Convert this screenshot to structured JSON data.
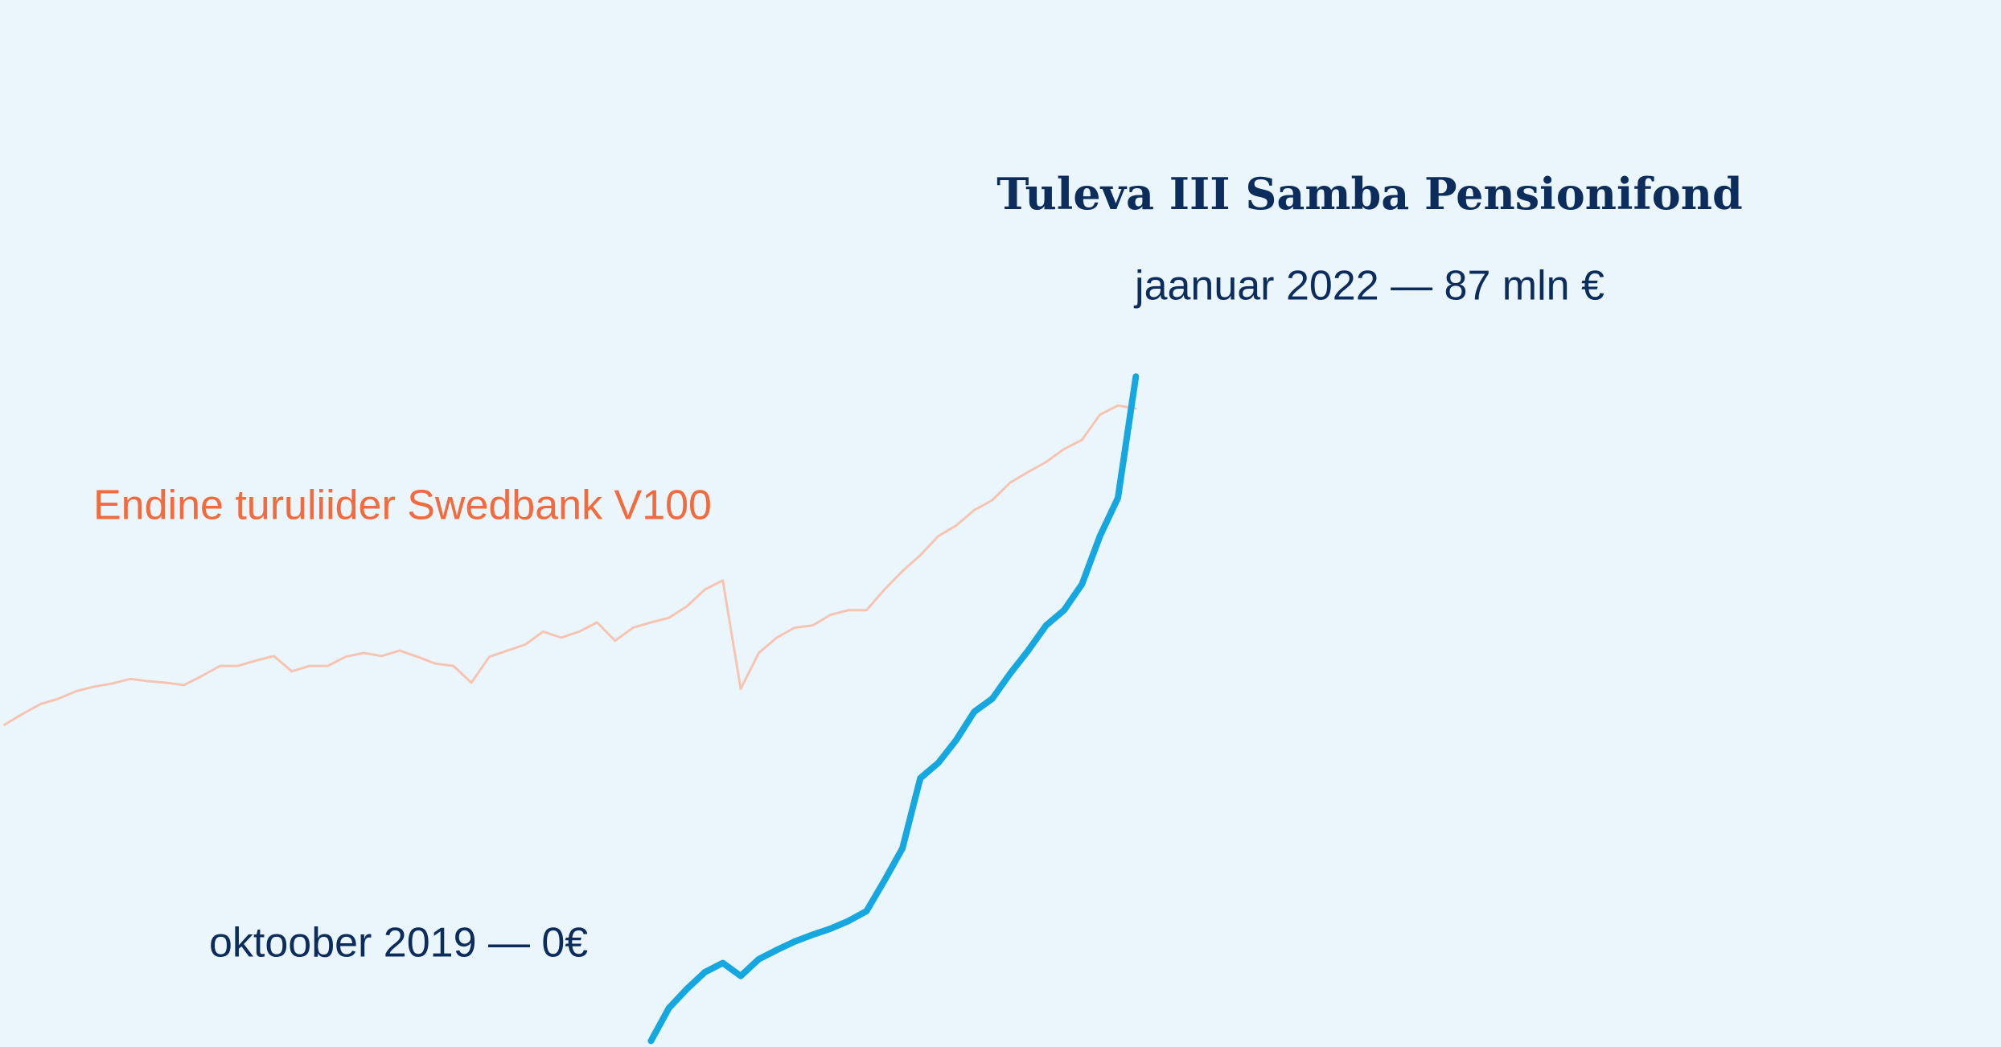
{
  "chart_data": {
    "type": "line",
    "title": "Tuleva III Samba Pensionifond",
    "subtitle": "jaanuar 2022 — 87 mln €",
    "annotations": [
      "oktoober 2019 — 0€"
    ],
    "categories": [
      null,
      null,
      null,
      null,
      null,
      null,
      null,
      null,
      null,
      null,
      null,
      null,
      null,
      null,
      null,
      null,
      null,
      null,
      null,
      null,
      null,
      null,
      null,
      null,
      null,
      null,
      null,
      null,
      null,
      null,
      null,
      null,
      null,
      null,
      null,
      null,
      null,
      null,
      null,
      null,
      null,
      null,
      null,
      null,
      null,
      null,
      null,
      null,
      null,
      null,
      null,
      null,
      null,
      null,
      null,
      null,
      null,
      null,
      null,
      null,
      null,
      null,
      null,
      null
    ],
    "ylim": [
      -0.8,
      136.3
    ],
    "series": [
      {
        "name": "Endine turuliider Swedbank V100",
        "color": "#f5c4b3",
        "values": [
          41.4,
          42.8,
          44.1,
          44.8,
          45.8,
          46.4,
          46.8,
          47.4,
          47.1,
          46.9,
          46.6,
          47.8,
          49.1,
          49.1,
          49.8,
          50.4,
          48.4,
          49.1,
          49.1,
          50.3,
          50.8,
          50.4,
          51.1,
          50.3,
          49.4,
          49.1,
          46.9,
          50.3,
          51.1,
          51.9,
          53.6,
          52.8,
          53.6,
          54.8,
          52.4,
          54.1,
          54.8,
          55.4,
          56.9,
          59.1,
          60.3,
          46.1,
          50.8,
          52.8,
          54.1,
          54.4,
          55.8,
          56.4,
          56.4,
          59.1,
          61.5,
          63.6,
          66.1,
          67.5,
          69.5,
          70.8,
          73.1,
          74.5,
          75.8,
          77.5,
          78.7,
          82.0,
          83.2,
          82.8
        ]
      },
      {
        "color": "#15a8e0",
        "values": [
          null,
          null,
          null,
          null,
          null,
          null,
          null,
          null,
          null,
          null,
          null,
          null,
          null,
          null,
          null,
          null,
          null,
          null,
          null,
          null,
          null,
          null,
          null,
          null,
          null,
          null,
          null,
          null,
          null,
          null,
          null,
          null,
          null,
          null,
          null,
          null,
          0,
          4.3,
          6.8,
          9.0,
          10.2,
          8.5,
          10.7,
          11.9,
          13.0,
          13.9,
          14.7,
          15.7,
          17.0,
          21.0,
          25.2,
          34.4,
          36.4,
          39.4,
          43.1,
          44.8,
          48.1,
          51.1,
          54.4,
          56.4,
          59.8,
          66.1,
          71.1,
          87
        ]
      }
    ]
  }
}
